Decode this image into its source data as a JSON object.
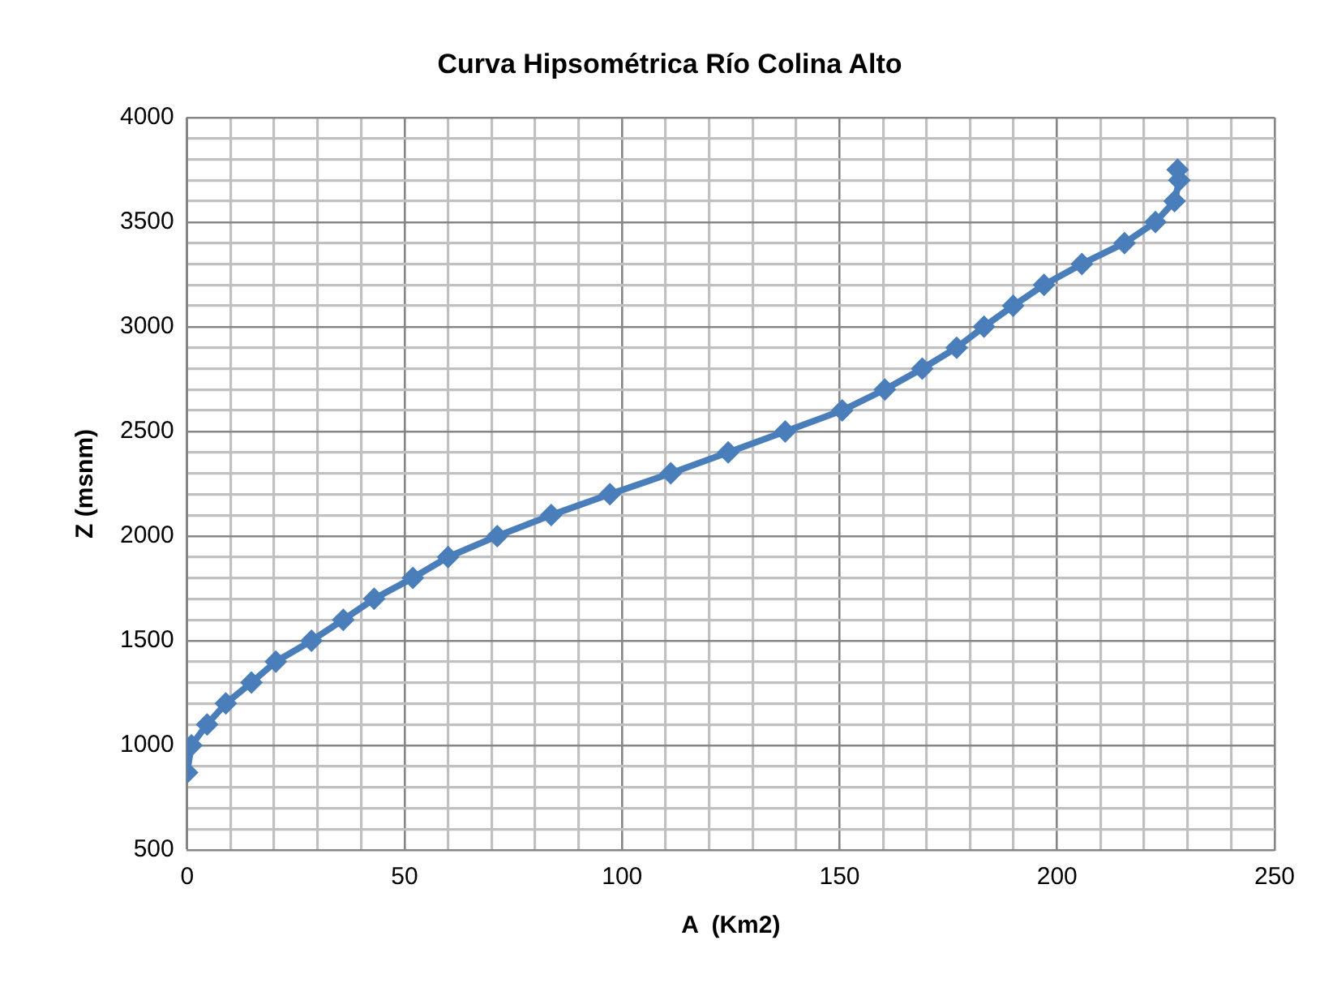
{
  "chart_data": {
    "type": "line",
    "title": "Curva Hipsométrica Río Colina Alto",
    "xlabel": "A  (Km2)",
    "ylabel": "Z (msnm)",
    "series": [
      {
        "color": "#4a7ebb",
        "x": [
          0,
          1,
          4.6,
          8.9,
          14.8,
          20.4,
          28.6,
          35.9,
          43,
          51.9,
          60,
          71.3,
          83.7,
          97.2,
          111.2,
          124.4,
          137.5,
          150.6,
          160.4,
          169,
          176.9,
          183.2,
          189.9,
          197,
          205.7,
          215.5,
          222.6,
          227,
          228.1,
          227.7
        ],
        "values": [
          870,
          1000,
          1100,
          1200,
          1300,
          1400,
          1500,
          1600,
          1700,
          1800,
          1900,
          2000,
          2100,
          2200,
          2300,
          2400,
          2500,
          2600,
          2700,
          2800,
          2900,
          3000,
          3100,
          3200,
          3300,
          3400,
          3500,
          3600,
          3700,
          3750
        ]
      }
    ],
    "xlim": [
      0,
      250
    ],
    "xticks": [
      0,
      {
        "value": 10,
        "label": null
      },
      {
        "value": 20,
        "label": null
      },
      {
        "value": 30,
        "label": null
      },
      {
        "value": 40,
        "label": null
      },
      50,
      {
        "value": 60,
        "label": null
      },
      {
        "value": 70,
        "label": null
      },
      {
        "value": 80,
        "label": null
      },
      {
        "value": 90,
        "label": null
      },
      100,
      {
        "value": 110,
        "label": null
      },
      {
        "value": 120,
        "label": null
      },
      {
        "value": 130,
        "label": null
      },
      {
        "value": 140,
        "label": null
      },
      150,
      {
        "value": 160,
        "label": null
      },
      {
        "value": 170,
        "label": null
      },
      {
        "value": 180,
        "label": null
      },
      {
        "value": 190,
        "label": null
      },
      200,
      {
        "value": 210,
        "label": null
      },
      {
        "value": 220,
        "label": null
      },
      {
        "value": 230,
        "label": null
      },
      {
        "value": 240,
        "label": null
      },
      250
    ],
    "ylim": [
      500,
      4000
    ],
    "yticks": [
      500,
      {
        "value": 600,
        "label": null
      },
      {
        "value": 700,
        "label": null
      },
      {
        "value": 800,
        "label": null
      },
      {
        "value": 900,
        "label": null
      },
      1000,
      {
        "value": 1100,
        "label": null
      },
      {
        "value": 1200,
        "label": null
      },
      {
        "value": 1300,
        "label": null
      },
      {
        "value": 1400,
        "label": null
      },
      1500,
      {
        "value": 1600,
        "label": null
      },
      {
        "value": 1700,
        "label": null
      },
      {
        "value": 1800,
        "label": null
      },
      {
        "value": 1900,
        "label": null
      },
      2000,
      {
        "value": 2100,
        "label": null
      },
      {
        "value": 2200,
        "label": null
      },
      {
        "value": 2300,
        "label": null
      },
      {
        "value": 2400,
        "label": null
      },
      2500,
      {
        "value": 2600,
        "label": null
      },
      {
        "value": 2700,
        "label": null
      },
      {
        "value": 2800,
        "label": null
      },
      {
        "value": 2900,
        "label": null
      },
      3000,
      {
        "value": 3100,
        "label": null
      },
      {
        "value": 3200,
        "label": null
      },
      {
        "value": 3300,
        "label": null
      },
      {
        "value": 3400,
        "label": null
      },
      3500,
      {
        "value": 3600,
        "label": null
      },
      {
        "value": 3700,
        "label": null
      },
      {
        "value": 3800,
        "label": null
      },
      {
        "value": 3900,
        "label": null
      },
      4000
    ],
    "grid": true,
    "marker": "diamond",
    "line_style": "solid"
  }
}
